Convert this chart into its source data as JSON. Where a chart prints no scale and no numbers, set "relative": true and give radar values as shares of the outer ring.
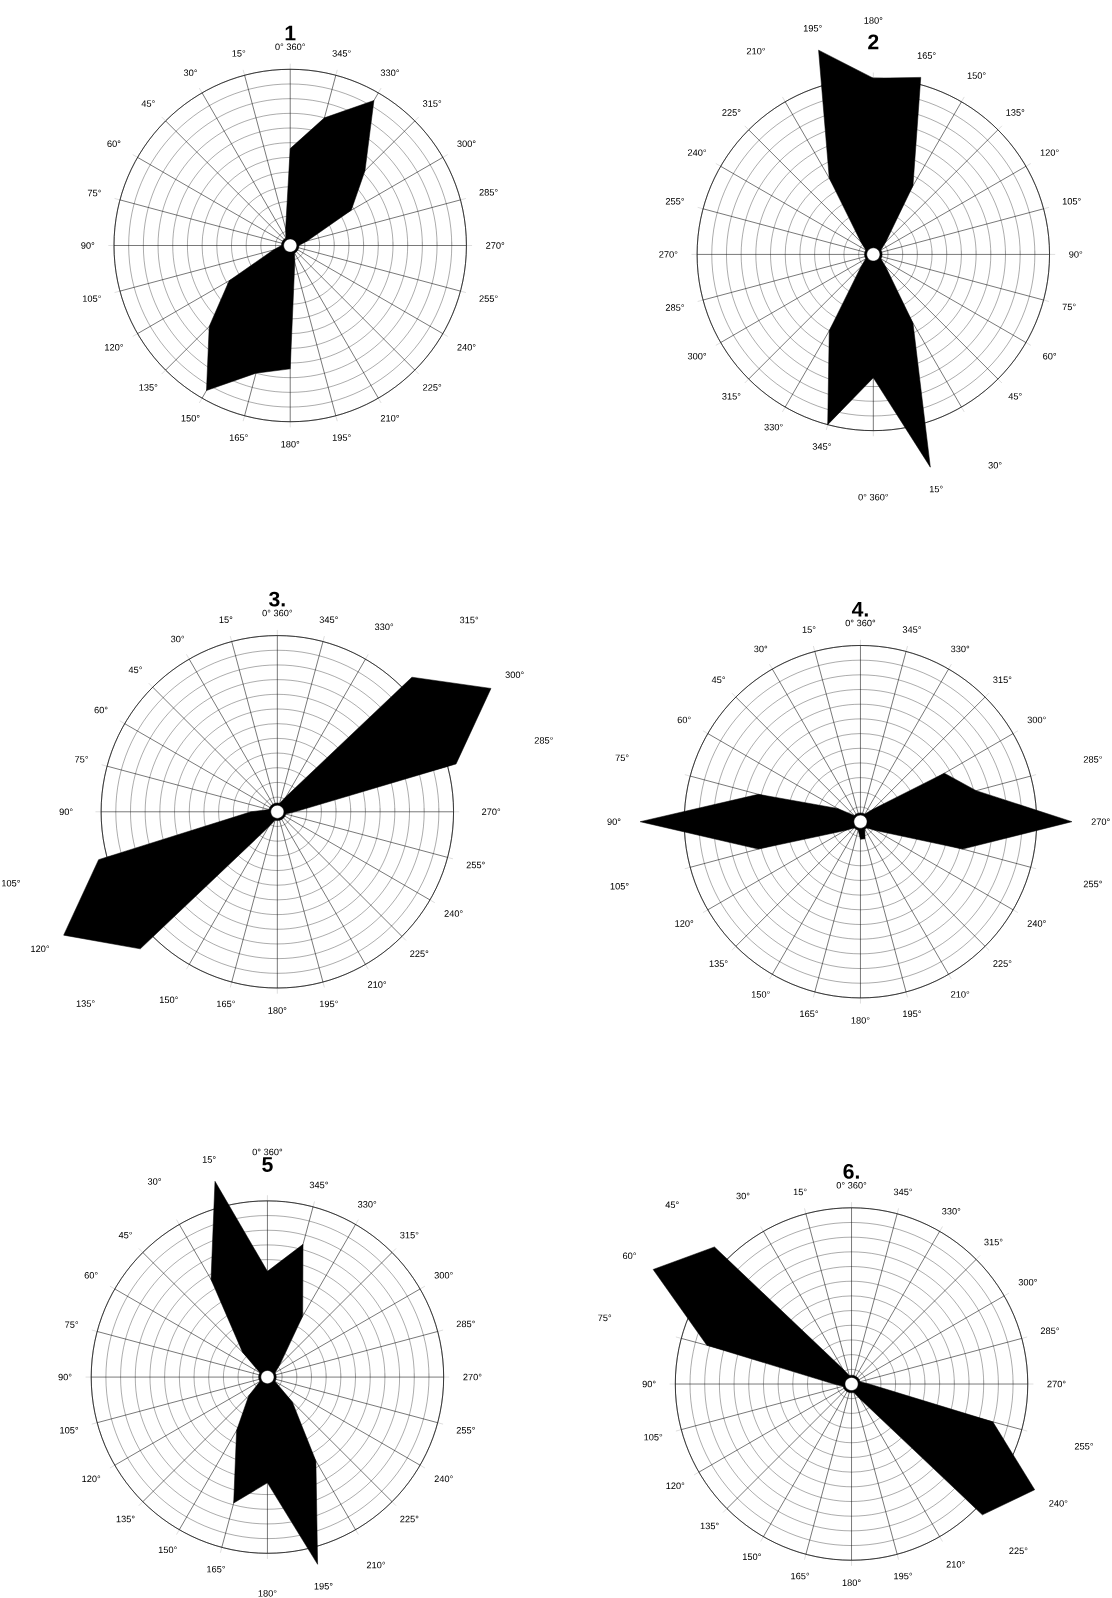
{
  "chart_data": [
    {
      "type": "radar",
      "title": "1",
      "relative": true,
      "grid": true,
      "categories": [
        "0° 360°",
        "345°",
        "330°",
        "315°",
        "300°",
        "285°",
        "270°",
        "255°",
        "240°",
        "225°",
        "210°",
        "195°",
        "180°",
        "165°",
        "150°",
        "135°",
        "120°",
        "105°",
        "90°",
        "75°",
        "60°",
        "45°",
        "30°",
        "15°"
      ],
      "series": [
        {
          "color": "#000000",
          "values": [
            0.55,
            0.75,
            0.95,
            0.6,
            0.4,
            0.1,
            0.05,
            0.05,
            0.05,
            0.05,
            0.05,
            0.1,
            0.7,
            0.75,
            0.95,
            0.65,
            0.4,
            0.1,
            0.05,
            0.05,
            0.05,
            0.05,
            0.05,
            0.1
          ]
        }
      ]
    },
    {
      "type": "radar",
      "title": "2",
      "relative": true,
      "grid": true,
      "categories": [
        "180°",
        "165°",
        "150°",
        "135°",
        "120°",
        "105°",
        "90°",
        "75°",
        "60°",
        "45°",
        "30°",
        "15°",
        "0° 360°",
        "345°",
        "330°",
        "315°",
        "300°",
        "285°",
        "270°",
        "255°",
        "240°",
        "225°",
        "210°",
        "195°"
      ],
      "series": [
        {
          "color": "#000000",
          "values": [
            1.0,
            1.04,
            0.45,
            0.1,
            0.05,
            0.05,
            0.05,
            0.05,
            0.05,
            0.1,
            0.45,
            1.25,
            0.7,
            1.0,
            0.5,
            0.1,
            0.05,
            0.05,
            0.05,
            0.05,
            0.05,
            0.1,
            0.5,
            1.2
          ]
        }
      ]
    },
    {
      "type": "radar",
      "title": "3.",
      "relative": true,
      "grid": true,
      "categories": [
        "0° 360°",
        "345°",
        "330°",
        "315°",
        "300°",
        "285°",
        "270°",
        "255°",
        "240°",
        "225°",
        "210°",
        "195°",
        "180°",
        "165°",
        "150°",
        "135°",
        "120°",
        "105°",
        "90°",
        "75°",
        "60°",
        "45°",
        "30°",
        "15°"
      ],
      "series": [
        {
          "color": "#000000",
          "values": [
            0.05,
            0.05,
            0.1,
            1.08,
            1.4,
            1.05,
            0.1,
            0.05,
            0.05,
            0.05,
            0.05,
            0.05,
            0.05,
            0.05,
            0.1,
            1.1,
            1.4,
            1.05,
            0.15,
            0.05,
            0.05,
            0.05,
            0.05,
            0.05
          ]
        }
      ]
    },
    {
      "type": "radar",
      "title": "4.",
      "relative": true,
      "grid": true,
      "categories": [
        "0° 360°",
        "345°",
        "330°",
        "315°",
        "300°",
        "285°",
        "270°",
        "255°",
        "240°",
        "225°",
        "210°",
        "195°",
        "180°",
        "165°",
        "150°",
        "135°",
        "120°",
        "105°",
        "90°",
        "75°",
        "60°",
        "45°",
        "30°",
        "15°"
      ],
      "series": [
        {
          "color": "#000000",
          "values": [
            0.05,
            0.05,
            0.05,
            0.1,
            0.55,
            0.68,
            1.2,
            0.6,
            0.1,
            0.05,
            0.05,
            0.1,
            0.1,
            0.05,
            0.05,
            0.05,
            0.1,
            0.6,
            1.25,
            0.6,
            0.15,
            0.05,
            0.05,
            0.05
          ]
        }
      ]
    },
    {
      "type": "radar",
      "title": "5",
      "relative": true,
      "grid": true,
      "categories": [
        "0° 360°",
        "345°",
        "330°",
        "315°",
        "300°",
        "285°",
        "270°",
        "255°",
        "240°",
        "225°",
        "210°",
        "195°",
        "180°",
        "165°",
        "150°",
        "135°",
        "120°",
        "105°",
        "90°",
        "75°",
        "60°",
        "45°",
        "30°",
        "15°"
      ],
      "series": [
        {
          "color": "#000000",
          "values": [
            0.6,
            0.78,
            0.4,
            0.1,
            0.05,
            0.05,
            0.05,
            0.05,
            0.05,
            0.2,
            0.55,
            1.1,
            0.6,
            0.74,
            0.35,
            0.15,
            0.05,
            0.05,
            0.05,
            0.05,
            0.05,
            0.2,
            0.64,
            1.15
          ]
        }
      ]
    },
    {
      "type": "radar",
      "title": "6.",
      "relative": true,
      "grid": true,
      "categories": [
        "0° 360°",
        "345°",
        "330°",
        "315°",
        "300°",
        "285°",
        "270°",
        "255°",
        "240°",
        "225°",
        "210°",
        "195°",
        "180°",
        "165°",
        "150°",
        "135°",
        "120°",
        "105°",
        "90°",
        "75°",
        "60°",
        "45°",
        "30°",
        "15°"
      ],
      "series": [
        {
          "color": "#000000",
          "values": [
            0.05,
            0.05,
            0.05,
            0.05,
            0.05,
            0.05,
            0.1,
            0.83,
            1.2,
            1.05,
            0.1,
            0.05,
            0.05,
            0.05,
            0.05,
            0.05,
            0.05,
            0.05,
            0.1,
            0.85,
            1.3,
            1.1,
            0.1,
            0.05
          ]
        }
      ]
    }
  ]
}
